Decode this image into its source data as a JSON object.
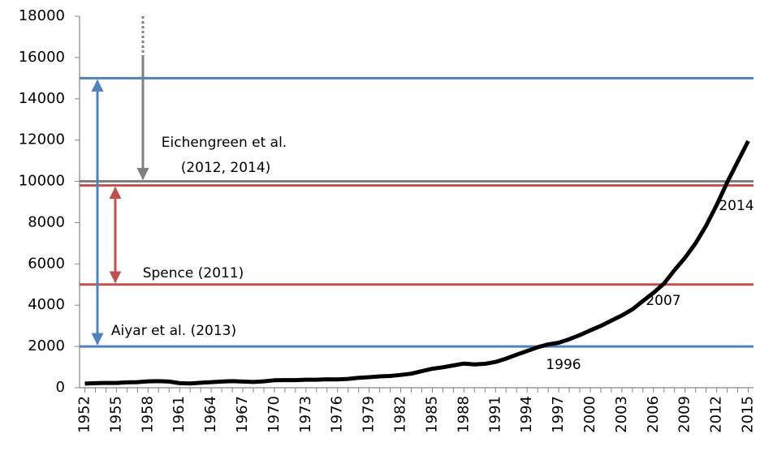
{
  "chart_data": {
    "type": "line",
    "x": [
      1952,
      1953,
      1954,
      1955,
      1956,
      1957,
      1958,
      1959,
      1960,
      1961,
      1962,
      1963,
      1964,
      1965,
      1966,
      1967,
      1968,
      1969,
      1970,
      1971,
      1972,
      1973,
      1974,
      1975,
      1976,
      1977,
      1978,
      1979,
      1980,
      1981,
      1982,
      1983,
      1984,
      1985,
      1986,
      1987,
      1988,
      1989,
      1990,
      1991,
      1992,
      1993,
      1994,
      1995,
      1996,
      1997,
      1998,
      1999,
      2000,
      2001,
      2002,
      2003,
      2004,
      2005,
      2006,
      2007,
      2008,
      2009,
      2010,
      2011,
      2012,
      2013,
      2014,
      2015
    ],
    "series": [
      {
        "color": "#000000",
        "values": [
          200,
          220,
          230,
          230,
          260,
          270,
          310,
          320,
          300,
          220,
          210,
          240,
          270,
          300,
          320,
          300,
          280,
          310,
          360,
          370,
          370,
          390,
          390,
          410,
          400,
          430,
          480,
          510,
          550,
          570,
          620,
          680,
          800,
          920,
          990,
          1080,
          1170,
          1130,
          1160,
          1250,
          1410,
          1600,
          1780,
          1960,
          2100,
          2180,
          2350,
          2550,
          2780,
          3000,
          3250,
          3500,
          3800,
          4200,
          4600,
          5050,
          5700,
          6300,
          7000,
          7850,
          8850,
          9950,
          10950,
          11950
        ]
      }
    ],
    "xlim": [
      1951.5,
      2015.5
    ],
    "xticks": [
      1952,
      1955,
      1958,
      1961,
      1964,
      1967,
      1970,
      1973,
      1976,
      1979,
      1982,
      1985,
      1988,
      1991,
      1994,
      1997,
      2000,
      2003,
      2006,
      2009,
      2012,
      2015
    ],
    "ylim": [
      0,
      18000
    ],
    "yticks": [
      0,
      2000,
      4000,
      6000,
      8000,
      10000,
      12000,
      14000,
      16000,
      18000
    ],
    "grid": false,
    "reference_lines": [
      {
        "value": 15000,
        "color": "#4f81bd"
      },
      {
        "value": 10000,
        "color": "#7f7f7f"
      },
      {
        "value": 9800,
        "color": "#c0504d"
      },
      {
        "value": 5000,
        "color": "#c0504d"
      },
      {
        "value": 2000,
        "color": "#4f81bd"
      }
    ],
    "annotations": [
      "Eichengreen et al.",
      "(2012, 2014)",
      "Spence (2011)",
      "Aiyar et al. (2013)",
      "1996",
      "2007",
      "2014"
    ]
  }
}
